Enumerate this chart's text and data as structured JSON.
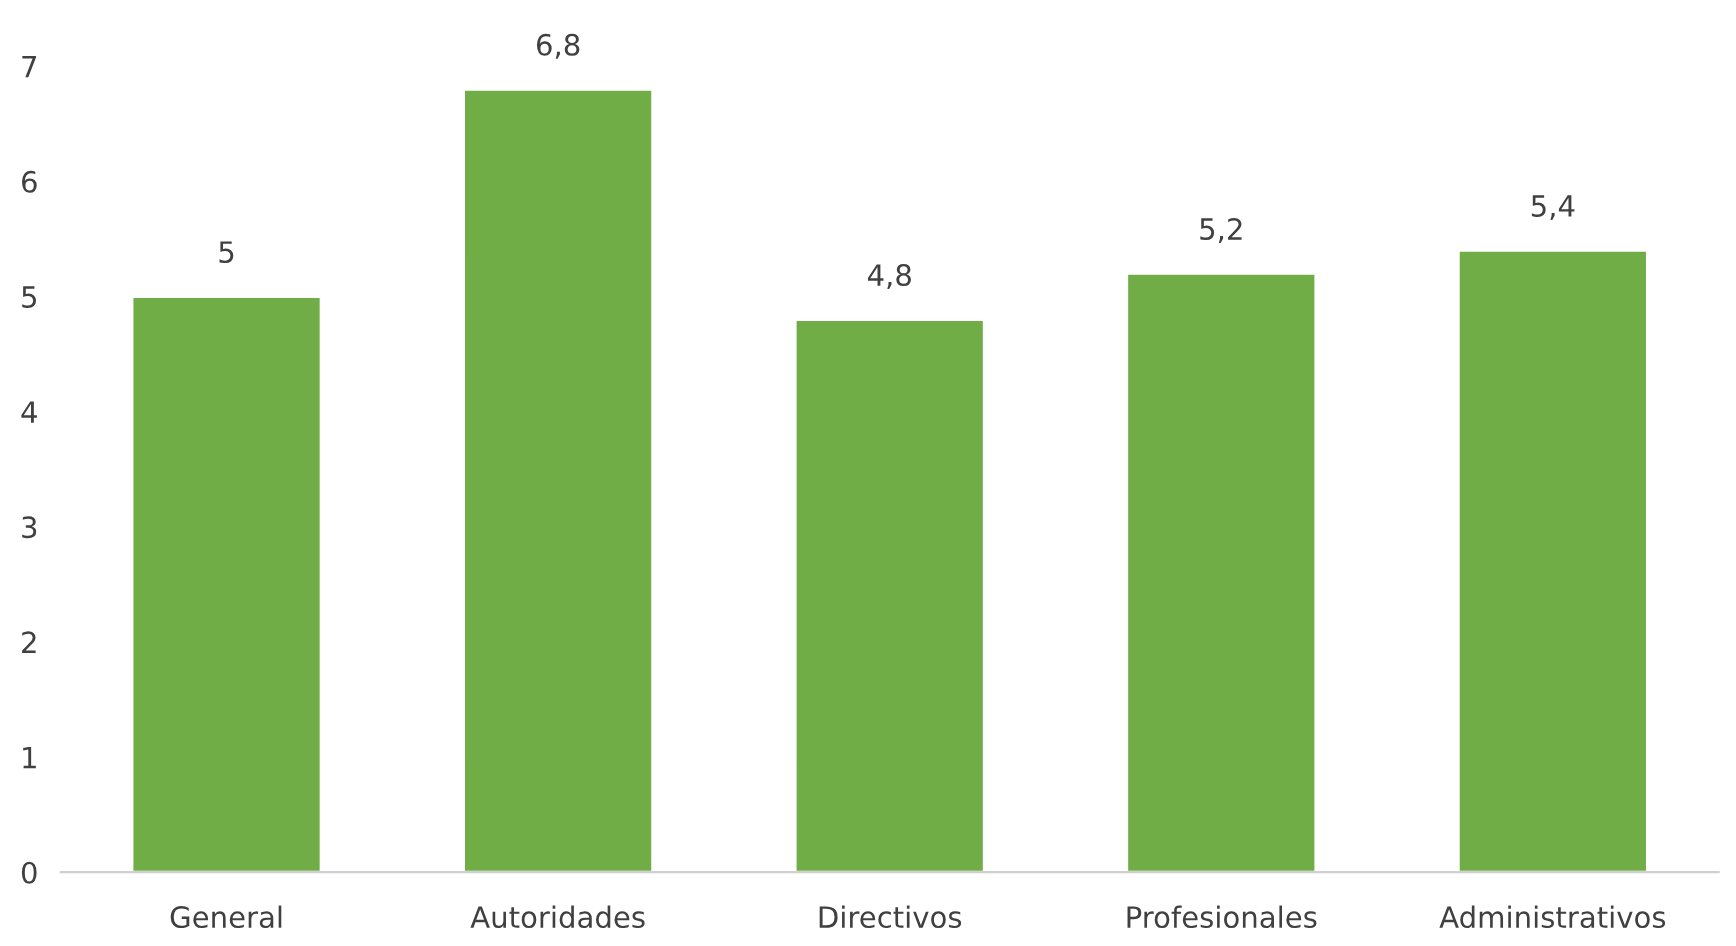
{
  "chart_data": {
    "type": "bar",
    "categories": [
      "General",
      "Autoridades",
      "Directivos",
      "Profesionales",
      "Administrativos"
    ],
    "values": [
      5,
      6.8,
      4.8,
      5.2,
      5.4
    ],
    "value_labels": [
      "5",
      "6,8",
      "4,8",
      "5,2",
      "5,4"
    ],
    "color": "#70ad47",
    "ylim": [
      0,
      7
    ],
    "yticks": [
      0,
      1,
      2,
      3,
      4,
      5,
      6,
      7
    ],
    "grid": false,
    "legend": false
  }
}
